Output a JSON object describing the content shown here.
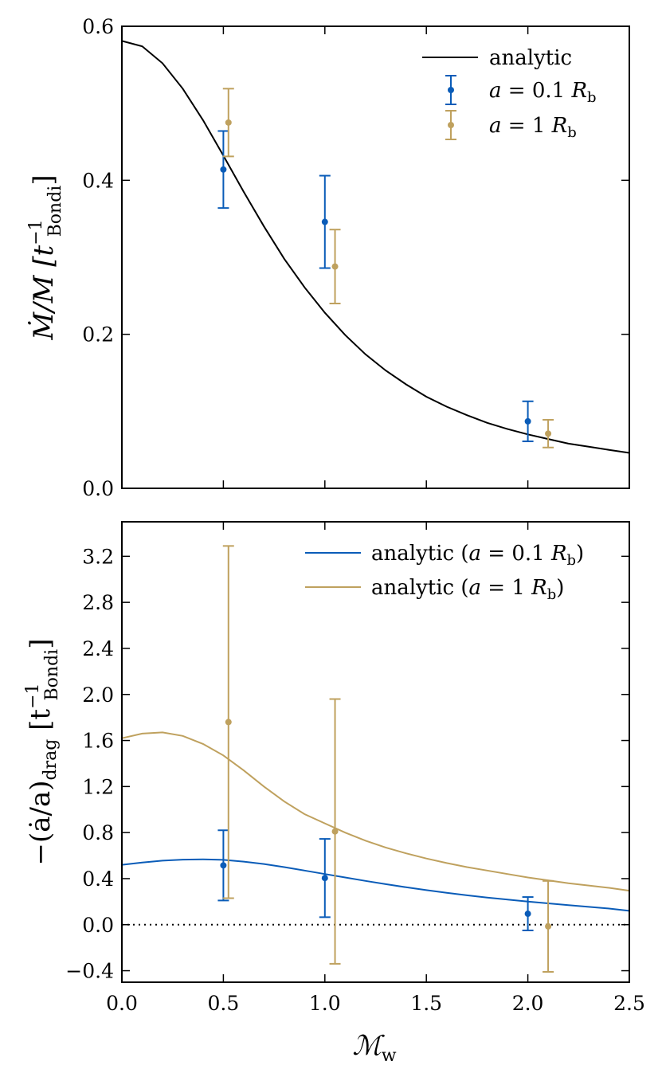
{
  "chart_data": [
    {
      "type": "line+errorbar",
      "panel": "top",
      "ylabel": "Ṁ/M [t_Bondi^-1]",
      "ylabel_parts": {
        "main": "Ṁ/M [t",
        "sup": "−1",
        "sub": "Bondi",
        "close": "]"
      },
      "xlim": [
        0.0,
        2.5
      ],
      "ylim": [
        0.0,
        0.6
      ],
      "yticks": [
        0.0,
        0.2,
        0.4,
        0.6
      ],
      "ytick_labels": [
        "0.0",
        "0.2",
        "0.4",
        "0.6"
      ],
      "xticks": [
        0.0,
        0.5,
        1.0,
        1.5,
        2.0,
        2.5
      ],
      "legend_position": "top-right",
      "series": [
        {
          "name": "analytic",
          "legend_label": "analytic",
          "kind": "line",
          "color": "#000000",
          "x": [
            0.0,
            0.1,
            0.2,
            0.3,
            0.4,
            0.5,
            0.6,
            0.7,
            0.8,
            0.9,
            1.0,
            1.1,
            1.2,
            1.3,
            1.4,
            1.5,
            1.6,
            1.7,
            1.8,
            1.9,
            2.0,
            2.1,
            2.2,
            2.3,
            2.4,
            2.5
          ],
          "y": [
            0.581,
            0.574,
            0.552,
            0.519,
            0.478,
            0.432,
            0.385,
            0.34,
            0.298,
            0.261,
            0.228,
            0.199,
            0.174,
            0.153,
            0.135,
            0.119,
            0.106,
            0.095,
            0.085,
            0.077,
            0.07,
            0.064,
            0.058,
            0.054,
            0.05,
            0.046
          ]
        },
        {
          "name": "a = 0.1 R_b",
          "legend_label": {
            "lhs": "a",
            "eq": " = 0.1 ",
            "var": "R",
            "sub": "b"
          },
          "kind": "errorbar",
          "color": "#0a5cb8",
          "x": [
            0.5,
            1.0,
            2.0
          ],
          "y": [
            0.414,
            0.346,
            0.087
          ],
          "yerr": [
            0.05,
            0.06,
            0.026
          ]
        },
        {
          "name": "a = 1 R_b",
          "legend_label": {
            "lhs": "a",
            "eq": " = 1 ",
            "var": "R",
            "sub": "b"
          },
          "kind": "errorbar",
          "color": "#bfa15e",
          "x": [
            0.525,
            1.05,
            2.1
          ],
          "y": [
            0.475,
            0.288,
            0.071
          ],
          "yerr": [
            0.044,
            0.048,
            0.018
          ]
        }
      ]
    },
    {
      "type": "line+errorbar",
      "panel": "bottom",
      "xlabel": "M_w",
      "xlabel_parts": {
        "main": "ℳ",
        "sub": "w"
      },
      "ylabel": "−(ȧ/a)_drag [t_Bondi^-1]",
      "ylabel_parts": {
        "main": "−(ȧ/a)",
        "sub1": "drag",
        "bracket": " [t",
        "sup": "−1",
        "sub2": "Bondi",
        "close": "]"
      },
      "xlim": [
        0.0,
        2.5
      ],
      "ylim": [
        -0.5,
        3.5
      ],
      "xticks": [
        0.0,
        0.5,
        1.0,
        1.5,
        2.0,
        2.5
      ],
      "xtick_labels": [
        "0.0",
        "0.5",
        "1.0",
        "1.5",
        "2.0",
        "2.5"
      ],
      "yticks": [
        -0.4,
        0.0,
        0.4,
        0.8,
        1.2,
        1.6,
        2.0,
        2.4,
        2.8,
        3.2
      ],
      "ytick_labels": [
        "−0.4",
        "0.0",
        "0.4",
        "0.8",
        "1.2",
        "1.6",
        "2.0",
        "2.4",
        "2.8",
        "3.2"
      ],
      "reference_line": {
        "y": 0.0,
        "style": "dotted",
        "color": "#000000"
      },
      "legend_position": "top-right",
      "series": [
        {
          "name": "analytic (a = 0.1 R_b)",
          "legend_label": {
            "pre": "analytic (",
            "lhs": "a",
            "eq": " = 0.1 ",
            "var": "R",
            "sub": "b",
            "post": ")"
          },
          "kind": "line",
          "color": "#0a5cb8",
          "x": [
            0.0,
            0.1,
            0.2,
            0.3,
            0.4,
            0.5,
            0.6,
            0.7,
            0.8,
            0.9,
            1.0,
            1.1,
            1.2,
            1.3,
            1.4,
            1.5,
            1.6,
            1.7,
            1.8,
            1.9,
            2.0,
            2.1,
            2.2,
            2.3,
            2.4,
            2.5
          ],
          "y": [
            0.52,
            0.54,
            0.556,
            0.565,
            0.568,
            0.563,
            0.548,
            0.527,
            0.5,
            0.47,
            0.44,
            0.41,
            0.38,
            0.352,
            0.325,
            0.3,
            0.277,
            0.255,
            0.235,
            0.218,
            0.2,
            0.185,
            0.17,
            0.155,
            0.14,
            0.12
          ]
        },
        {
          "name": "analytic (a = 1 R_b)",
          "legend_label": {
            "pre": "analytic (",
            "lhs": "a",
            "eq": " = 1 ",
            "var": "R",
            "sub": "b",
            "post": ")"
          },
          "kind": "line",
          "color": "#bfa15e",
          "x": [
            0.0,
            0.1,
            0.2,
            0.3,
            0.4,
            0.5,
            0.6,
            0.7,
            0.8,
            0.9,
            1.0,
            1.1,
            1.2,
            1.3,
            1.4,
            1.5,
            1.6,
            1.7,
            1.8,
            1.9,
            2.0,
            2.1,
            2.2,
            2.3,
            2.4,
            2.5
          ],
          "y": [
            1.62,
            1.66,
            1.67,
            1.64,
            1.57,
            1.47,
            1.34,
            1.2,
            1.07,
            0.96,
            0.88,
            0.8,
            0.73,
            0.67,
            0.62,
            0.575,
            0.535,
            0.5,
            0.47,
            0.44,
            0.41,
            0.385,
            0.36,
            0.34,
            0.32,
            0.295
          ]
        },
        {
          "name": "a = 0.1 R_b data",
          "kind": "errorbar",
          "color": "#0a5cb8",
          "x": [
            0.5,
            1.0,
            2.0
          ],
          "y": [
            0.515,
            0.405,
            0.095
          ],
          "yerr": [
            0.305,
            0.34,
            0.145
          ]
        },
        {
          "name": "a = 1 R_b data",
          "kind": "errorbar",
          "color": "#bfa15e",
          "x": [
            0.525,
            1.05,
            2.1
          ],
          "y": [
            1.76,
            0.81,
            -0.015
          ],
          "yerr": [
            1.53,
            1.15,
            0.395
          ]
        }
      ]
    }
  ]
}
